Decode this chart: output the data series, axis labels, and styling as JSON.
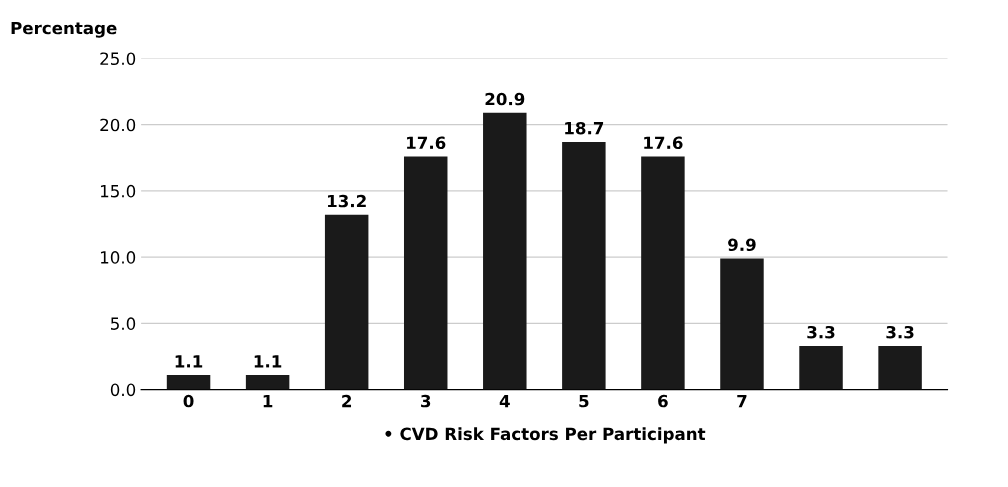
{
  "chart_data": {
    "type": "bar",
    "ylabel": "Percentage",
    "xlabel": "• CVD Risk Factors Per Participant",
    "categories": [
      "0",
      "1",
      "2",
      "3",
      "4",
      "5",
      "6",
      "7",
      null,
      null
    ],
    "values": [
      1.1,
      1.1,
      13.2,
      17.6,
      20.9,
      18.7,
      17.6,
      9.9,
      3.3,
      3.3
    ],
    "color": "#1a1a1a",
    "data_labels": true,
    "grid": "y",
    "ylim": [
      0,
      25
    ],
    "yticks": [
      {
        "value": 0,
        "label": "0.0"
      },
      {
        "value": 5,
        "label": "5.0"
      },
      {
        "value": 10,
        "label": "10.0"
      },
      {
        "value": 15,
        "label": "15.0"
      },
      {
        "value": 20,
        "label": "20.0"
      },
      {
        "value": 25,
        "label": "25.0"
      }
    ]
  }
}
